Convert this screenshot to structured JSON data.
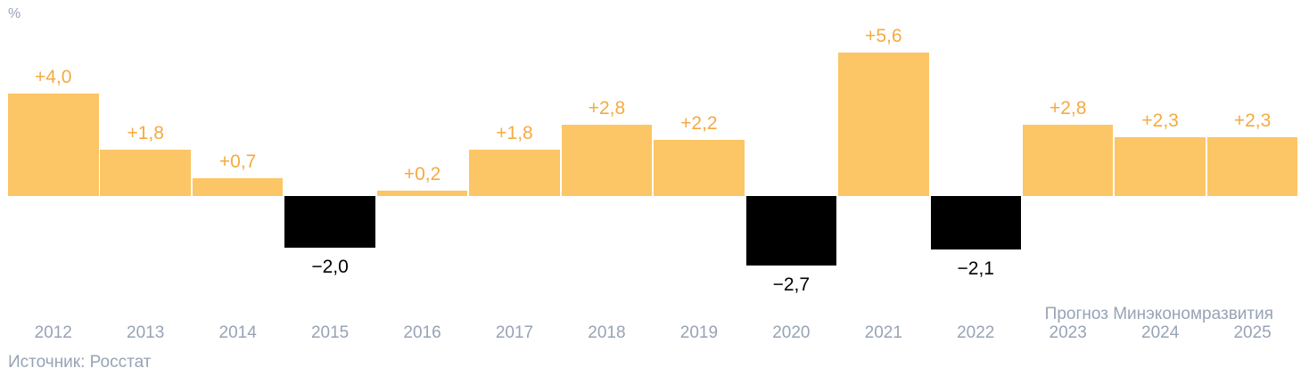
{
  "chart_data": {
    "type": "bar",
    "title": "",
    "ylabel": "%",
    "xlabel": "",
    "categories": [
      "2012",
      "2013",
      "2014",
      "2015",
      "2016",
      "2017",
      "2018",
      "2019",
      "2020",
      "2021",
      "2022",
      "2023",
      "2024",
      "2025"
    ],
    "values": [
      4.0,
      1.8,
      0.7,
      -2.0,
      0.2,
      1.8,
      2.8,
      2.2,
      -2.7,
      5.6,
      -2.1,
      2.8,
      2.3,
      2.3
    ],
    "value_labels": [
      "+4,0",
      "+1,8",
      "+0,7",
      "−2,0",
      "+0,2",
      "+1,8",
      "+2,8",
      "+2,2",
      "−2,7",
      "+5,6",
      "−2,1",
      "+2,8",
      "+2,3",
      "+2,3"
    ],
    "forecast_note": "Прогноз Минэкономразвития",
    "forecast_years": [
      "2023",
      "2024",
      "2025"
    ],
    "source": "Источник: Росстат",
    "unit_label": "%",
    "ylim": [
      -3,
      6
    ],
    "grid": false,
    "legend": false,
    "colors": {
      "positive_bar": "#FCC565",
      "negative_bar": "#000000",
      "positive_label": "#F5AA41",
      "negative_label": "#000000",
      "axis_text": "#97A3B5"
    }
  }
}
